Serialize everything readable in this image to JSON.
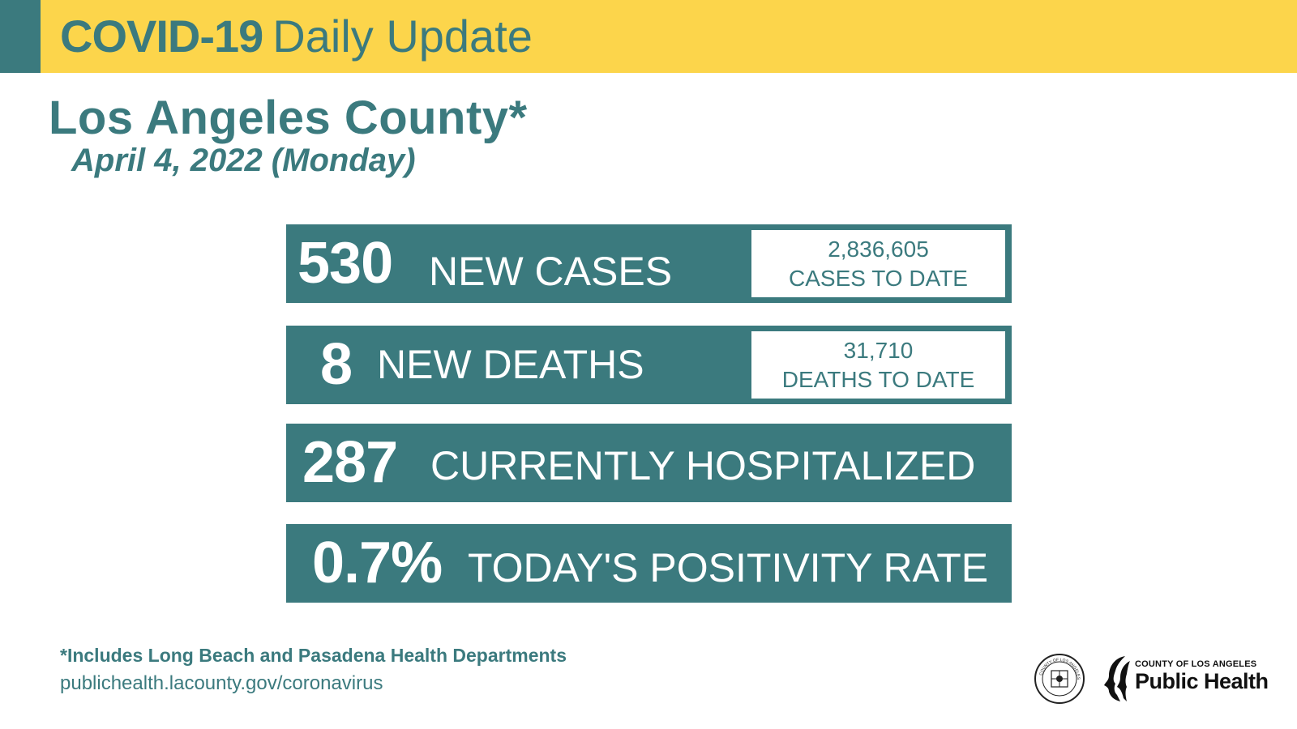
{
  "header": {
    "title_bold": "COVID-19",
    "title_light": "Daily Update"
  },
  "county": "Los Angeles County*",
  "date": "April 4, 2022 (Monday)",
  "stats": [
    {
      "number": "530",
      "label": "NEW CASES",
      "total": "2,836,605",
      "total_label": "CASES TO DATE"
    },
    {
      "number": "8",
      "label": "NEW DEATHS",
      "total": "31,710",
      "total_label": "DEATHS TO DATE"
    },
    {
      "number": "287",
      "label": "CURRENTLY HOSPITALIZED"
    },
    {
      "number": "0.7%",
      "label": "TODAY'S POSITIVITY RATE"
    }
  ],
  "footer": {
    "note": "*Includes Long Beach and Pasadena Health Departments",
    "url": "publichealth.lacounty.gov/coronavirus"
  },
  "logo": {
    "small_text": "COUNTY OF LOS ANGELES",
    "big_text": "Public Health",
    "seal_text": "COUNTY OF LOS ANGELES · CALIFORNIA"
  },
  "colors": {
    "banner": "#fcd54b",
    "teal": "#3b7a7e"
  }
}
